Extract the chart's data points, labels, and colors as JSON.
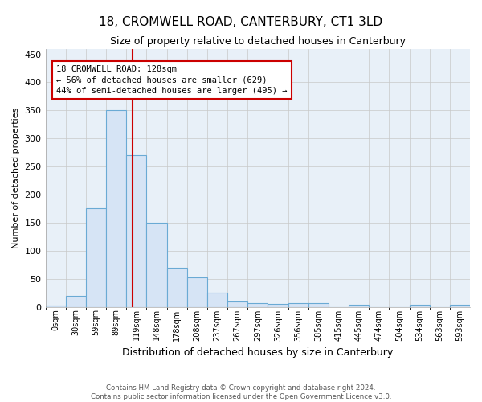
{
  "title1": "18, CROMWELL ROAD, CANTERBURY, CT1 3LD",
  "title2": "Size of property relative to detached houses in Canterbury",
  "xlabel": "Distribution of detached houses by size in Canterbury",
  "ylabel": "Number of detached properties",
  "footer1": "Contains HM Land Registry data © Crown copyright and database right 2024.",
  "footer2": "Contains public sector information licensed under the Open Government Licence v3.0.",
  "bin_labels": [
    "0sqm",
    "30sqm",
    "59sqm",
    "89sqm",
    "119sqm",
    "148sqm",
    "178sqm",
    "208sqm",
    "237sqm",
    "267sqm",
    "297sqm",
    "326sqm",
    "356sqm",
    "385sqm",
    "415sqm",
    "445sqm",
    "474sqm",
    "504sqm",
    "534sqm",
    "563sqm",
    "593sqm"
  ],
  "bar_values": [
    2,
    20,
    175,
    350,
    270,
    150,
    70,
    53,
    25,
    10,
    6,
    5,
    6,
    7,
    0,
    4,
    0,
    0,
    4,
    0,
    4
  ],
  "bar_color": "#d6e4f5",
  "bar_edge_color": "#6aaad4",
  "vline_color": "#cc0000",
  "annotation_text_line1": "18 CROMWELL ROAD: 128sqm",
  "annotation_text_line2": "← 56% of detached houses are smaller (629)",
  "annotation_text_line3": "44% of semi-detached houses are larger (495) →",
  "annotation_box_color": "#ffffff",
  "annotation_box_edge": "#cc0000",
  "ylim": [
    0,
    460
  ],
  "yticks": [
    0,
    50,
    100,
    150,
    200,
    250,
    300,
    350,
    400,
    450
  ],
  "grid_color": "#c8c8c8",
  "background_color": "#ffffff",
  "plot_bg_color": "#e8f0f8"
}
